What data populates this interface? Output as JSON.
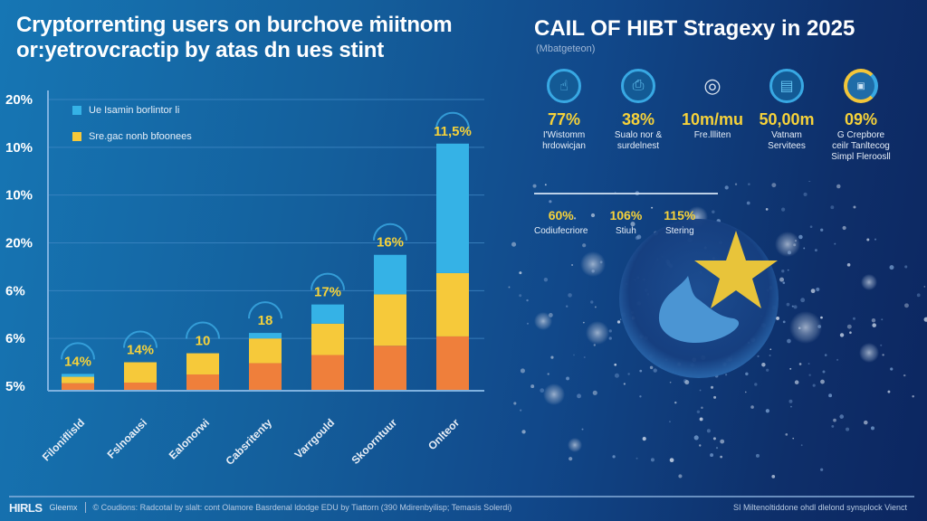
{
  "header": {
    "title_line1": "Cryptorrenting users on burchove ṁiitnom",
    "title_line2": "or:yetrovcractip by atas dn ues stint"
  },
  "right_header": {
    "title": "CAIL OF HIBT Stragexy in 2025",
    "subtitle": "(Mbatgeteon)"
  },
  "legend": [
    {
      "label": "Ue Isamin borlintor li",
      "color": "#35b2e6"
    },
    {
      "label": "Sre.gac nonb bfoonees",
      "color": "#f6c93a"
    }
  ],
  "chart_data": {
    "type": "bar",
    "stacked": true,
    "title": "Cryptorrenting users on burchove ṁiitnom or:yetrovcractip by atas dn ues stint",
    "xlabel": "",
    "ylabel": "",
    "y_tick_labels": [
      "20%",
      "10%",
      "10%",
      "20%",
      "6%",
      "6%",
      "5%"
    ],
    "ylim_fraction": [
      0,
      1
    ],
    "grid": true,
    "legend_position": "top-left",
    "categories": [
      "Filoniflisld",
      "Fslnoausi",
      "Ealonorwi",
      "Cabsritenty",
      "Varrgould",
      "Skoorntuur",
      "Onlteor"
    ],
    "bar_labels": [
      "14%",
      "14%",
      "10",
      "18",
      "17%",
      "16%",
      "11,5%"
    ],
    "series": [
      {
        "name": "orange-base",
        "color": "#ef7f3b",
        "values": [
          0.023,
          0.025,
          0.053,
          0.092,
          0.12,
          0.152,
          0.184
        ]
      },
      {
        "name": "Sre.gac nonb bfoonees",
        "color": "#f6c93a",
        "values": [
          0.022,
          0.07,
          0.073,
          0.085,
          0.108,
          0.177,
          0.218
        ]
      },
      {
        "name": "Ue Isamin borlintor li",
        "color": "#35b2e6",
        "values": [
          0.01,
          0.0,
          0.0,
          0.019,
          0.066,
          0.136,
          0.446
        ]
      }
    ],
    "note": "values are fractions of the plotted axis height (axis tick labels are non-monotonic)"
  },
  "stats": [
    {
      "icon": "hands-icon",
      "glyph": "☝",
      "value": "77%",
      "label": "I'Wistomm\nhrdowicjan"
    },
    {
      "icon": "printer-icon",
      "glyph": "⎙",
      "value": "38%",
      "label": "Sualo nor &\nsurdelnest"
    },
    {
      "icon": "coins-icon",
      "glyph": "◎",
      "value": "10m/mu",
      "label": "Fre.llliten"
    },
    {
      "icon": "wallet-icon",
      "glyph": "▤",
      "value": "50,00m",
      "label": "Vatnam\nServitees"
    },
    {
      "icon": "gauge-icon",
      "glyph": "▣",
      "value": "09%",
      "label": "G Crepbore\nceilr Tanltecog\nSimpl Fleroosll"
    }
  ],
  "mini_stats": [
    {
      "value": "60%",
      "label": "Codiufecriore"
    },
    {
      "value": "106%",
      "label": "Stiuh"
    },
    {
      "value": "115%",
      "label": "Stering"
    }
  ],
  "footer": {
    "logo": "HIRLS",
    "brand": "Gleemx",
    "credit": "© Coudions: Radcotal by slalt: cont Olamore Basrdenal ldodge EDU by Tiattorn (390 Mdirenbyilisp; Temasis Solerdi)",
    "right_text": "SI Miltenoltiddone ohdl dlelond synsplock Vienct"
  },
  "colors": {
    "accent_yellow": "#f6d23a",
    "accent_blue": "#35b2e6",
    "accent_orange": "#ef7f3b",
    "background_start": "#1676b4",
    "background_end": "#0c2660"
  }
}
